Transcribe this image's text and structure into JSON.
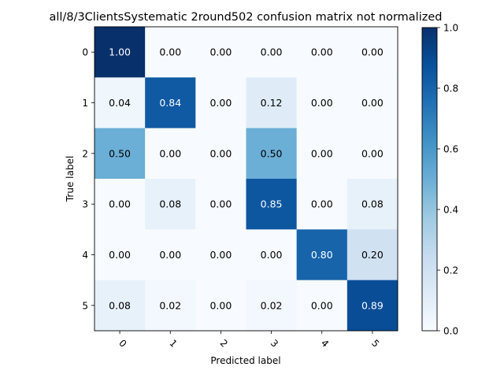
{
  "chart_data": {
    "type": "heatmap",
    "title": "all/8/3ClientsSystematic 2round502 confusion matrix not normalized",
    "xlabel": "Predicted label",
    "ylabel": "True label",
    "x_categories": [
      "0",
      "1",
      "2",
      "3",
      "4",
      "5"
    ],
    "y_categories": [
      "0",
      "1",
      "2",
      "3",
      "4",
      "5"
    ],
    "values": [
      [
        1.0,
        0.0,
        0.0,
        0.0,
        0.0,
        0.0
      ],
      [
        0.04,
        0.84,
        0.0,
        0.12,
        0.0,
        0.0
      ],
      [
        0.5,
        0.0,
        0.0,
        0.5,
        0.0,
        0.0
      ],
      [
        0.0,
        0.08,
        0.0,
        0.85,
        0.0,
        0.08
      ],
      [
        0.0,
        0.0,
        0.0,
        0.0,
        0.8,
        0.2
      ],
      [
        0.08,
        0.02,
        0.0,
        0.02,
        0.0,
        0.89
      ]
    ],
    "value_labels": [
      [
        "1.00",
        "0.00",
        "0.00",
        "0.00",
        "0.00",
        "0.00"
      ],
      [
        "0.04",
        "0.84",
        "0.00",
        "0.12",
        "0.00",
        "0.00"
      ],
      [
        "0.50",
        "0.00",
        "0.00",
        "0.50",
        "0.00",
        "0.00"
      ],
      [
        "0.00",
        "0.08",
        "0.00",
        "0.85",
        "0.00",
        "0.08"
      ],
      [
        "0.00",
        "0.00",
        "0.00",
        "0.00",
        "0.80",
        "0.20"
      ],
      [
        "0.08",
        "0.02",
        "0.00",
        "0.02",
        "0.00",
        "0.89"
      ]
    ],
    "colormap": "Blues",
    "colorbar": {
      "range": [
        0.0,
        1.0
      ],
      "ticks": [
        "0.0",
        "0.2",
        "0.4",
        "0.6",
        "0.8",
        "1.0"
      ]
    },
    "x_tick_rotation": 45,
    "grid": false
  }
}
